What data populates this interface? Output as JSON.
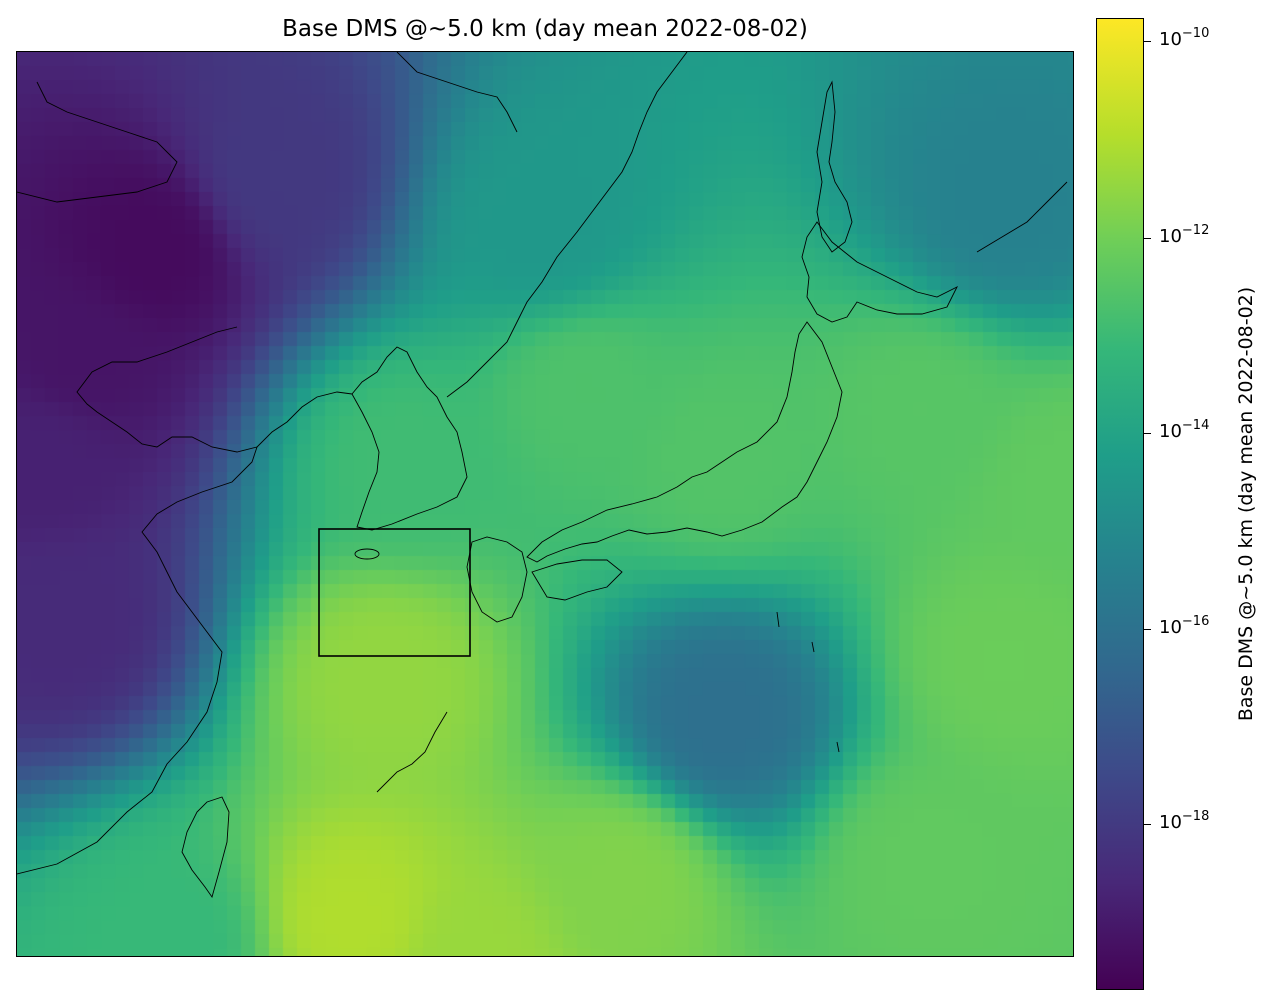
{
  "title": "Base DMS @~5.0 km (day mean 2022-08-02)",
  "colorbar": {
    "label": "Base DMS @~5.0 km (day mean 2022-08-02)",
    "scale": "log",
    "colormap": "viridis",
    "ticks": [
      {
        "base": "10",
        "exp": "−10",
        "value": 1e-10
      },
      {
        "base": "10",
        "exp": "−12",
        "value": 1e-12
      },
      {
        "base": "10",
        "exp": "−14",
        "value": 1e-14
      },
      {
        "base": "10",
        "exp": "−16",
        "value": 1e-16
      },
      {
        "base": "10",
        "exp": "−18",
        "value": 1e-18
      }
    ]
  },
  "chart_data": {
    "type": "heatmap",
    "title": "Base DMS @~5.0 km (day mean 2022-08-02)",
    "projection": "map of East Asia (China coast, Korea, Japan, Taiwan) with coastlines",
    "value_range_log10": [
      -20.8,
      -9.9
    ],
    "colorbar_label": "Base DMS @~5.0 km (day mean 2022-08-02)",
    "grid": false,
    "regions": [
      {
        "area": "northwest (Mongolia/NE China)",
        "log10_value": -20.5
      },
      {
        "area": "west edge (China interior)",
        "log10_value": -19.5
      },
      {
        "area": "Korean peninsula",
        "log10_value": -13.3
      },
      {
        "area": "Sea of Japan",
        "log10_value": -13.0
      },
      {
        "area": "Honshu",
        "log10_value": -12.9
      },
      {
        "area": "East China Sea",
        "log10_value": -11.7
      },
      {
        "area": "south near Taiwan",
        "log10_value": -11.2
      },
      {
        "area": "Pacific low band south of Japan",
        "log10_value": -16.8
      },
      {
        "area": "east Pacific",
        "log10_value": -12.4
      },
      {
        "area": "northeast (Sakhalin/Okhotsk)",
        "log10_value": -16.0
      }
    ],
    "annotation": "rectangle box over the sea west of Kyushu"
  },
  "colors": {
    "box": "#000000",
    "coast": "#000000"
  }
}
